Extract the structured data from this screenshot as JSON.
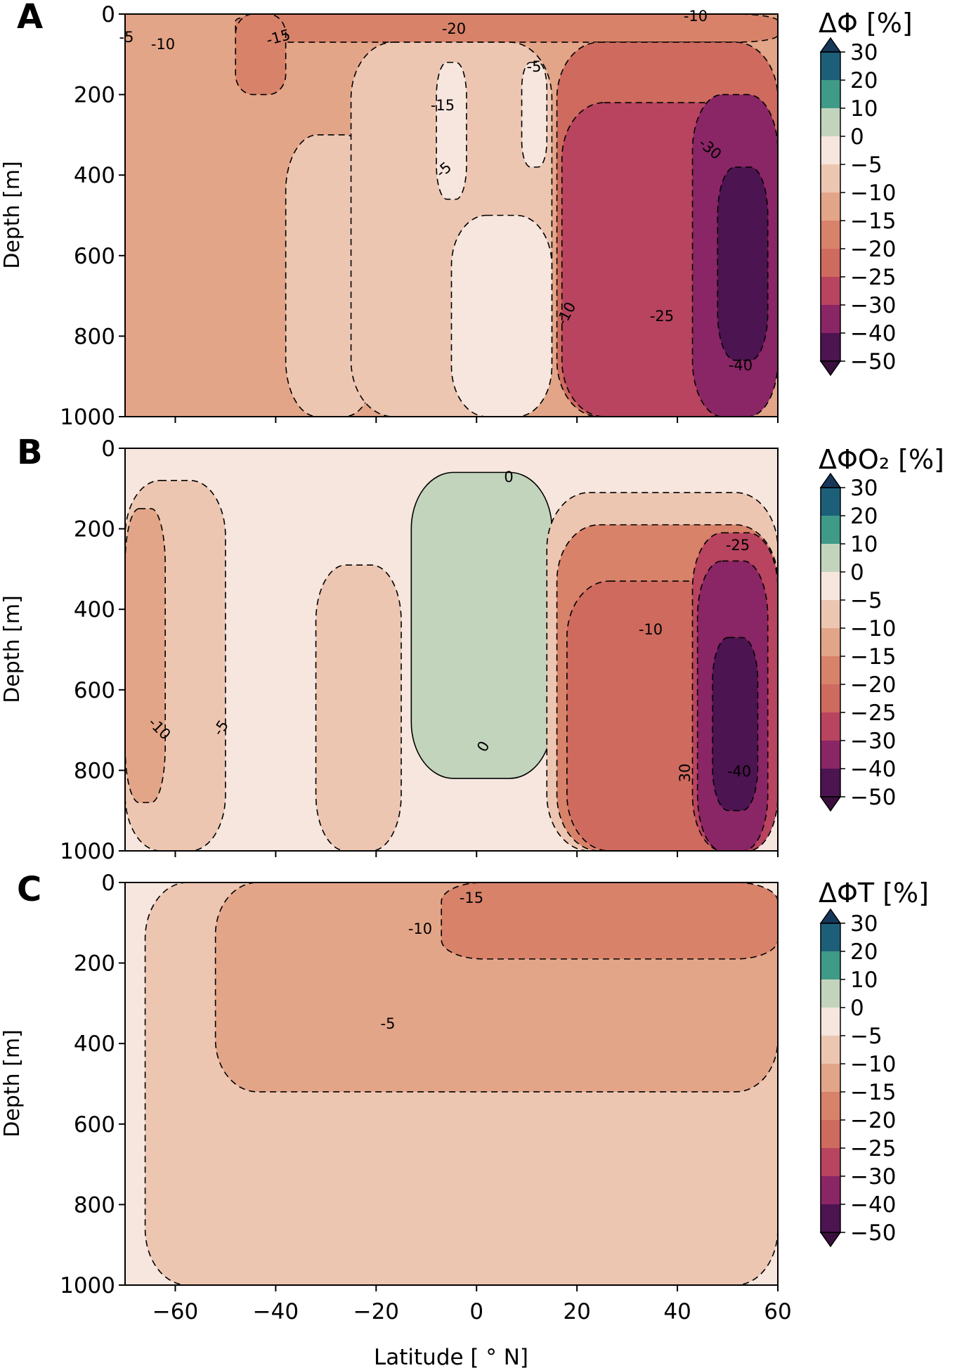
{
  "colors": {
    "levels": [
      {
        "lo": -50,
        "hi": -40,
        "color": "#4c1450"
      },
      {
        "lo": -40,
        "hi": -30,
        "color": "#8a2566"
      },
      {
        "lo": -30,
        "hi": -25,
        "color": "#b8445f"
      },
      {
        "lo": -25,
        "hi": -20,
        "color": "#cf6a5f"
      },
      {
        "lo": -20,
        "hi": -15,
        "color": "#d8826a"
      },
      {
        "lo": -15,
        "hi": -10,
        "color": "#e3a588"
      },
      {
        "lo": -10,
        "hi": -5,
        "color": "#edc6b2"
      },
      {
        "lo": -5,
        "hi": 0,
        "color": "#f6e6de"
      },
      {
        "lo": 0,
        "hi": 10,
        "color": "#c3d4bd"
      },
      {
        "lo": 10,
        "hi": 20,
        "color": "#3f9a87"
      },
      {
        "lo": 20,
        "hi": 30,
        "color": "#1d5f79"
      }
    ],
    "over": "#17375a",
    "under": "#3b0f3d"
  },
  "chart_data": [
    {
      "panel": "A",
      "type": "heatmap",
      "subtype": "filled-contour",
      "cbar_title": "ΔΦ [%]",
      "ylabel": "Depth [m]",
      "xlabel": "",
      "xlim": [
        -70,
        60
      ],
      "ylim": [
        1000,
        0
      ],
      "yticks": [
        "0",
        "200",
        "400",
        "600",
        "800",
        "1000"
      ],
      "xticks": [
        "−60",
        "−40",
        "−20",
        "0",
        "20",
        "40",
        "60"
      ],
      "contour_labels": [
        "-5",
        "-10",
        "-15",
        "-20",
        "-10",
        "-15",
        "-5",
        "-5",
        "-30",
        "-25",
        "-10",
        "-40"
      ],
      "colorbar_labels": [
        "30",
        "20",
        "10",
        "0",
        "−5",
        "−10",
        "−15",
        "−20",
        "−25",
        "−30",
        "−40",
        "−50"
      ],
      "regions": [
        {
          "value": -12,
          "x": [
            -70,
            60
          ],
          "y": [
            0,
            1000
          ]
        },
        {
          "value": -17,
          "x": [
            -48,
            60
          ],
          "y": [
            0,
            70
          ]
        },
        {
          "value": -18,
          "x": [
            -48,
            -38
          ],
          "y": [
            0,
            200
          ]
        },
        {
          "value": -7,
          "x": [
            -38,
            -20
          ],
          "y": [
            300,
            1000
          ]
        },
        {
          "value": -7,
          "x": [
            -25,
            15
          ],
          "y": [
            70,
            1000
          ]
        },
        {
          "value": -3,
          "x": [
            -8,
            -2
          ],
          "y": [
            120,
            460
          ]
        },
        {
          "value": -3,
          "x": [
            -5,
            15
          ],
          "y": [
            500,
            1000
          ]
        },
        {
          "value": -3,
          "x": [
            9,
            14
          ],
          "y": [
            120,
            380
          ]
        },
        {
          "value": -22,
          "x": [
            16,
            60
          ],
          "y": [
            70,
            1000
          ]
        },
        {
          "value": -27,
          "x": [
            17,
            60
          ],
          "y": [
            220,
            1000
          ]
        },
        {
          "value": -35,
          "x": [
            43,
            60
          ],
          "y": [
            200,
            1000
          ]
        },
        {
          "value": -45,
          "x": [
            48,
            58
          ],
          "y": [
            380,
            860
          ]
        }
      ]
    },
    {
      "panel": "B",
      "type": "heatmap",
      "subtype": "filled-contour",
      "cbar_title": "ΔΦO₂ [%]",
      "ylabel": "Depth [m]",
      "xlabel": "",
      "xlim": [
        -70,
        60
      ],
      "ylim": [
        1000,
        0
      ],
      "yticks": [
        "0",
        "200",
        "400",
        "600",
        "800",
        "1000"
      ],
      "xticks": [
        "−60",
        "−40",
        "−20",
        "0",
        "20",
        "40",
        "60"
      ],
      "contour_labels": [
        "0",
        "-10",
        "-5",
        "0",
        "-10",
        "-25",
        "30",
        "-40"
      ],
      "colorbar_labels": [
        "30",
        "20",
        "10",
        "0",
        "−5",
        "−10",
        "−15",
        "−20",
        "−25",
        "−30",
        "−40",
        "−50"
      ],
      "regions": [
        {
          "value": -3,
          "x": [
            -70,
            60
          ],
          "y": [
            0,
            1000
          ]
        },
        {
          "value": -7,
          "x": [
            -70,
            -50
          ],
          "y": [
            80,
            1000
          ]
        },
        {
          "value": -12,
          "x": [
            -70,
            -62
          ],
          "y": [
            150,
            880
          ]
        },
        {
          "value": -7,
          "x": [
            -32,
            -15
          ],
          "y": [
            290,
            1000
          ]
        },
        {
          "value": 3,
          "x": [
            -13,
            15
          ],
          "y": [
            60,
            820
          ]
        },
        {
          "value": -7,
          "x": [
            14,
            60
          ],
          "y": [
            110,
            1000
          ]
        },
        {
          "value": -17,
          "x": [
            16,
            60
          ],
          "y": [
            190,
            1000
          ]
        },
        {
          "value": -22,
          "x": [
            18,
            60
          ],
          "y": [
            330,
            1000
          ]
        },
        {
          "value": -27,
          "x": [
            43,
            60
          ],
          "y": [
            210,
            1000
          ]
        },
        {
          "value": -35,
          "x": [
            44,
            58
          ],
          "y": [
            280,
            1000
          ]
        },
        {
          "value": -45,
          "x": [
            47,
            56
          ],
          "y": [
            470,
            900
          ]
        }
      ]
    },
    {
      "panel": "C",
      "type": "heatmap",
      "subtype": "filled-contour",
      "cbar_title": "ΔΦT [%]",
      "ylabel": "Depth [m]",
      "xlabel": "Latitude [ ° N]",
      "xlim": [
        -70,
        60
      ],
      "ylim": [
        1000,
        0
      ],
      "yticks": [
        "0",
        "200",
        "400",
        "600",
        "800",
        "1000"
      ],
      "xticks": [
        "−60",
        "−40",
        "−20",
        "0",
        "20",
        "40",
        "60"
      ],
      "contour_labels": [
        "-15",
        "-10",
        "-5"
      ],
      "colorbar_labels": [
        "30",
        "20",
        "10",
        "0",
        "−5",
        "−10",
        "−15",
        "−20",
        "−25",
        "−30",
        "−40",
        "−50"
      ],
      "regions": [
        {
          "value": -3,
          "x": [
            -70,
            60
          ],
          "y": [
            0,
            1000
          ]
        },
        {
          "value": -7,
          "x": [
            -66,
            60
          ],
          "y": [
            0,
            1000
          ]
        },
        {
          "value": -12,
          "x": [
            -52,
            60
          ],
          "y": [
            0,
            520
          ]
        },
        {
          "value": -17,
          "x": [
            -7,
            60
          ],
          "y": [
            0,
            190
          ]
        }
      ]
    }
  ]
}
